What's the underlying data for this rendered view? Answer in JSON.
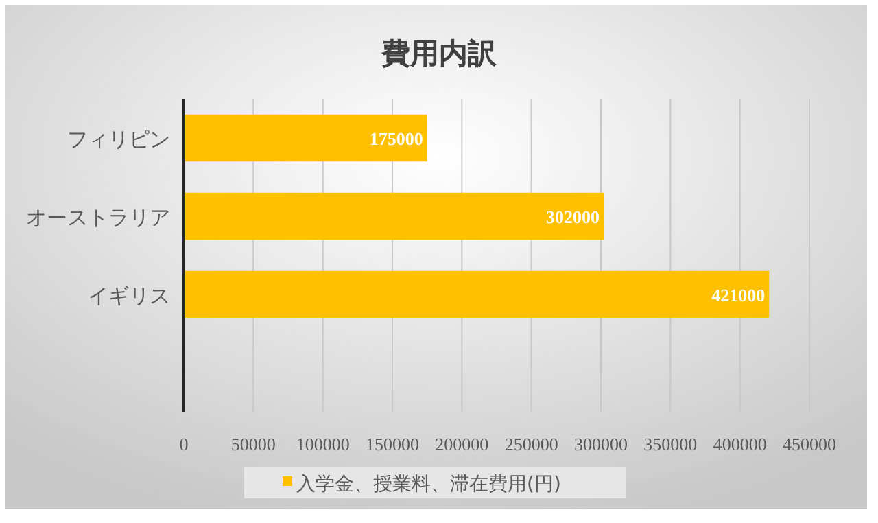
{
  "chart_data": {
    "type": "bar",
    "orientation": "horizontal",
    "title": "費用内訳",
    "categories": [
      "フィリピン",
      "オーストラリア",
      "イギリス",
      null
    ],
    "series": [
      {
        "name": "入学金、授業料、滞在費用(円)",
        "color": "#ffc000",
        "values": [
          175000,
          302000,
          421000,
          null
        ]
      }
    ],
    "xlim": [
      0,
      450000
    ],
    "xticks": [
      0,
      50000,
      100000,
      150000,
      200000,
      250000,
      300000,
      350000,
      400000,
      450000
    ],
    "grid": "x",
    "legend": "bottom",
    "data_labels": true
  }
}
